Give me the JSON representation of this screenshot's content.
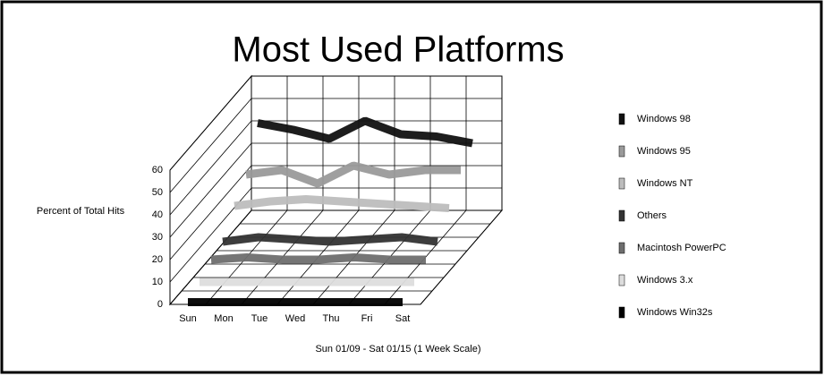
{
  "chart_data": {
    "type": "ribbon3d",
    "title": "Most Used Platforms",
    "y_label": "Percent of Total Hits",
    "x_label": "Sun 01/09 - Sat 01/15 (1 Week Scale)",
    "categories": [
      "Sun",
      "Mon",
      "Tue",
      "Wed",
      "Thu",
      "Fri",
      "Sat"
    ],
    "ylim": [
      0,
      60
    ],
    "yticks": [
      0,
      10,
      20,
      30,
      40,
      50,
      60
    ],
    "grid": true,
    "series": [
      {
        "name": "Windows 98",
        "color": "#111111",
        "values": [
          45,
          42,
          38,
          46,
          40,
          39,
          36
        ]
      },
      {
        "name": "Windows 95",
        "color": "#9a9a9a",
        "values": [
          28,
          30,
          24,
          32,
          28,
          30,
          30
        ]
      },
      {
        "name": "Windows NT",
        "color": "#bdbdbd",
        "values": [
          20,
          22,
          23,
          22,
          21,
          20,
          19
        ]
      },
      {
        "name": "Others",
        "color": "#333333",
        "values": [
          10,
          12,
          11,
          10,
          11,
          12,
          10
        ]
      },
      {
        "name": "Macintosh PowerPC",
        "color": "#6e6e6e",
        "values": [
          8,
          9,
          8,
          8,
          9,
          8,
          8
        ]
      },
      {
        "name": "Windows 3.x",
        "color": "#dddddd",
        "values": [
          4,
          4,
          4,
          4,
          4,
          4,
          4
        ]
      },
      {
        "name": "Windows Win32s",
        "color": "#000000",
        "values": [
          1,
          1,
          1,
          1,
          1,
          1,
          1
        ]
      }
    ]
  }
}
